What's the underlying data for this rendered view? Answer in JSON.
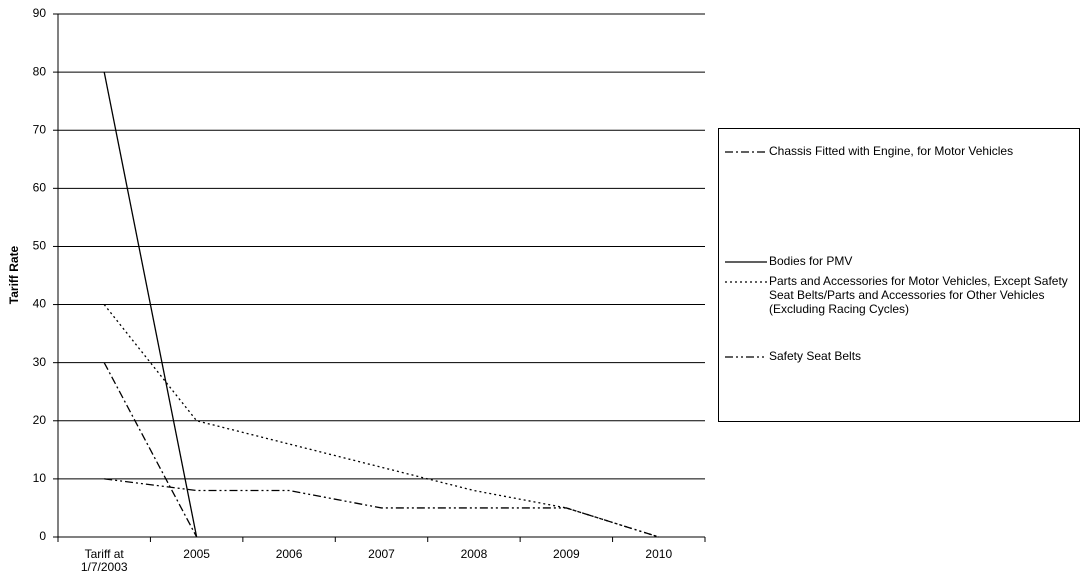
{
  "chart_data": {
    "type": "line",
    "y_label": "Tariff Rate",
    "categories": [
      "Tariff at 1/7/2003",
      "2005",
      "2006",
      "2007",
      "2008",
      "2009",
      "2010"
    ],
    "series": [
      {
        "name": "Chassis Fitted with Engine, for Motor Vehicles",
        "color": "#000000",
        "dash": "8,3,2,3",
        "values": [
          30,
          0,
          null,
          null,
          null,
          null,
          null
        ]
      },
      {
        "name": "Bodies for PMV",
        "color": "#000000",
        "dash": "none",
        "values": [
          80,
          0,
          null,
          null,
          null,
          null,
          null
        ]
      },
      {
        "name": "Parts and Accessories for Motor Vehicles, Except Safety Seat Belts/Parts and Accessories for Other Vehicles (Excluding Racing Cycles)",
        "color": "#000000",
        "dash": "2,3",
        "values": [
          40,
          20,
          16,
          12,
          8,
          5,
          0
        ]
      },
      {
        "name": "Safety Seat Belts",
        "color": "#000000",
        "dash": "8,3,2,3,2,3",
        "values": [
          10,
          8,
          8,
          5,
          5,
          5,
          0
        ]
      }
    ],
    "ylim": [
      0,
      90
    ],
    "yticks": [
      0,
      10,
      20,
      30,
      40,
      50,
      60,
      70,
      80,
      90
    ],
    "grid": true
  }
}
